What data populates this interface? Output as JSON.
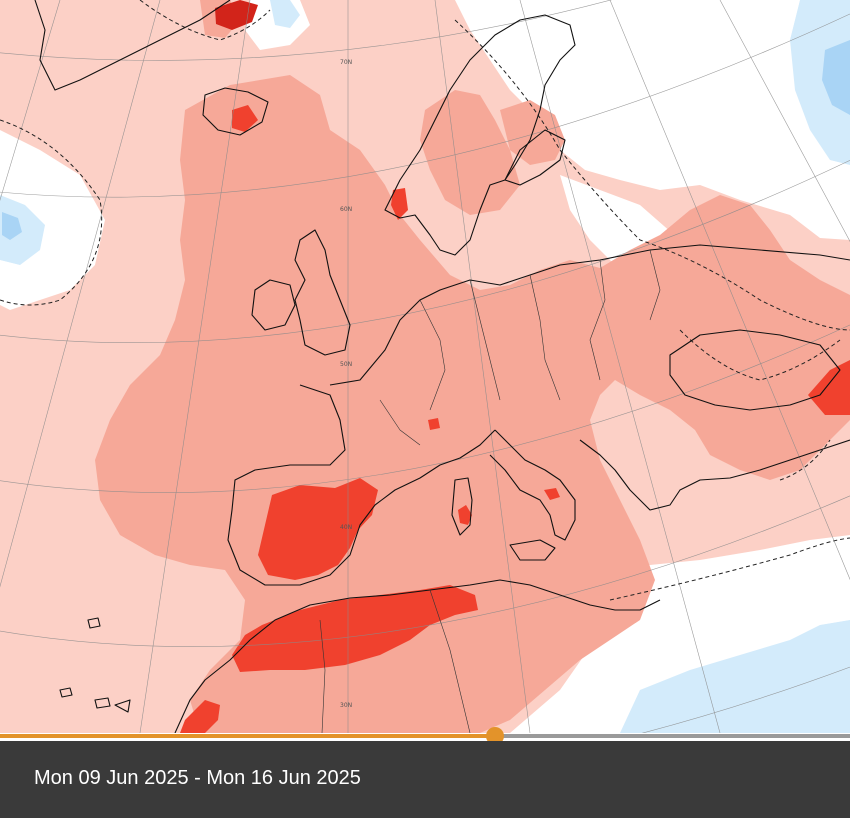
{
  "date_range": "Mon 09 Jun 2025 - Mon 16 Jun 2025",
  "timeline": {
    "progress": 0.582
  },
  "graticule_labels": [
    "70N",
    "60N",
    "50N",
    "40N",
    "30N"
  ],
  "colors": {
    "base_warm": "#fcd0c6",
    "warm": "#f6a898",
    "hot": "#f47b66",
    "hottest": "#f0412e",
    "extreme": "#d2241a",
    "neutral": "#ffffff",
    "cool": "#d3ebfb",
    "cooler": "#a9d4f5",
    "accent": "#e3932a",
    "footer": "#3a3a3a"
  }
}
